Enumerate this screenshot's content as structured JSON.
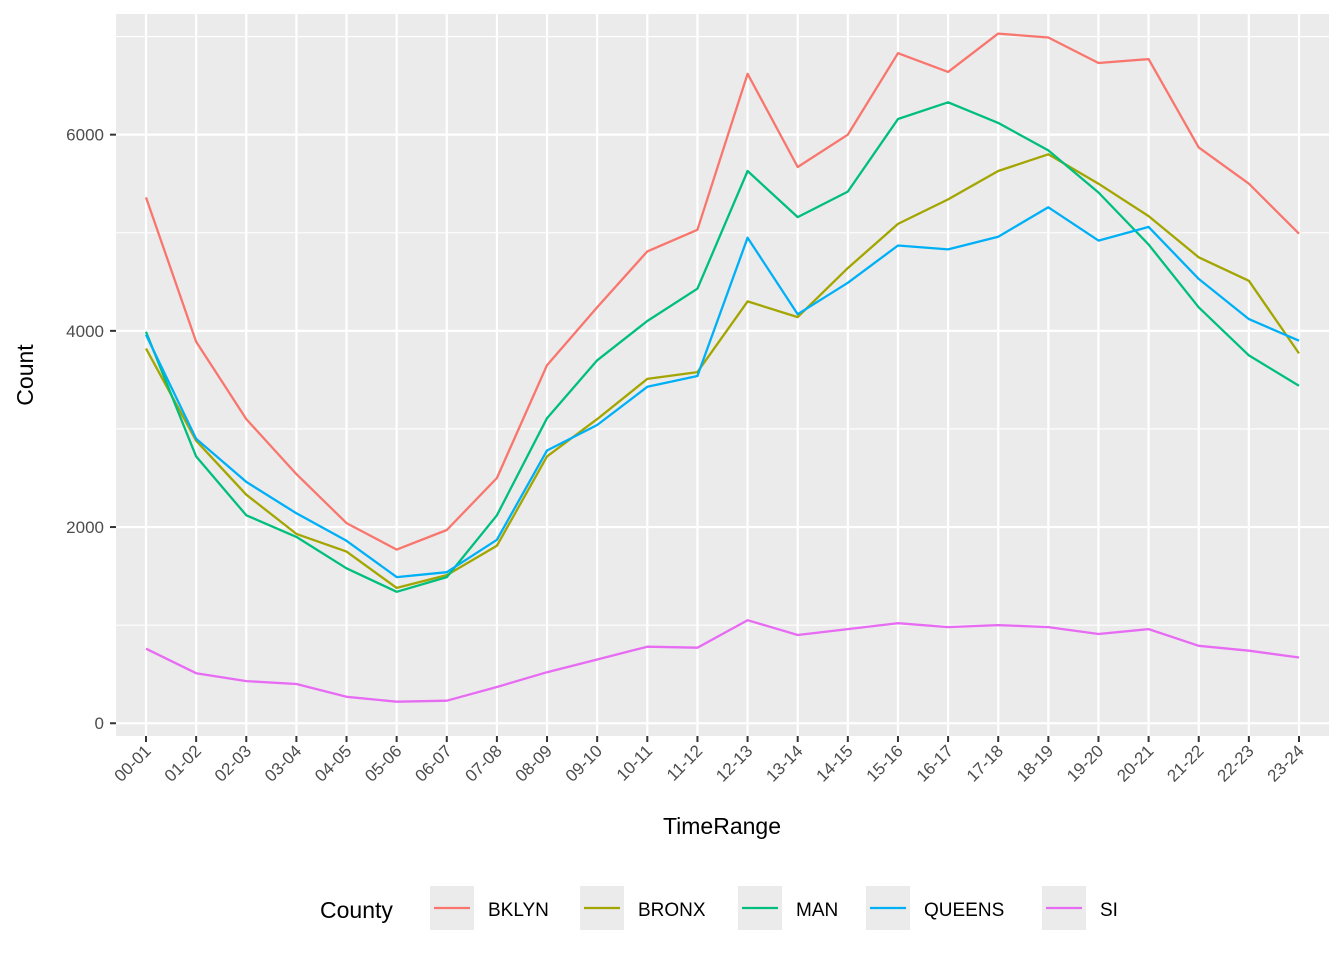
{
  "chart_data": {
    "type": "line",
    "title": "",
    "xlabel": "TimeRange",
    "ylabel": "Count",
    "categories": [
      "00-01",
      "01-02",
      "02-03",
      "03-04",
      "04-05",
      "05-06",
      "06-07",
      "07-08",
      "08-09",
      "09-10",
      "10-11",
      "11-12",
      "12-13",
      "13-14",
      "14-15",
      "15-16",
      "16-17",
      "17-18",
      "18-19",
      "19-20",
      "20-21",
      "21-22",
      "22-23",
      "23-24"
    ],
    "ylim": [
      -130,
      7230
    ],
    "yticks": [
      0,
      2000,
      4000,
      6000
    ],
    "grid": true,
    "legend": {
      "title": "County",
      "position": "bottom"
    },
    "series": [
      {
        "name": "BKLYN",
        "color": "#F8766D",
        "values": [
          5360,
          3890,
          3100,
          2540,
          2040,
          1770,
          1970,
          2500,
          3650,
          4240,
          4810,
          5030,
          6620,
          5670,
          6000,
          6830,
          6640,
          7030,
          6990,
          6730,
          6770,
          5870,
          5500,
          4990
        ]
      },
      {
        "name": "BRONX",
        "color": "#A3A500",
        "values": [
          3820,
          2880,
          2330,
          1930,
          1750,
          1380,
          1510,
          1810,
          2720,
          3100,
          3510,
          3580,
          4300,
          4140,
          4640,
          5090,
          5340,
          5630,
          5800,
          5500,
          5170,
          4750,
          4510,
          3770
        ]
      },
      {
        "name": "MAN",
        "color": "#00BF7D",
        "values": [
          3990,
          2720,
          2120,
          1900,
          1580,
          1340,
          1490,
          2120,
          3110,
          3700,
          4100,
          4430,
          5630,
          5160,
          5420,
          6160,
          6330,
          6120,
          5840,
          5410,
          4880,
          4240,
          3750,
          3440
        ]
      },
      {
        "name": "QUEENS",
        "color": "#00B0F6",
        "values": [
          3960,
          2900,
          2460,
          2140,
          1860,
          1490,
          1540,
          1870,
          2780,
          3040,
          3430,
          3540,
          4950,
          4170,
          4490,
          4870,
          4830,
          4960,
          5260,
          4920,
          5060,
          4530,
          4120,
          3900
        ]
      },
      {
        "name": "SI",
        "color": "#E76BF3",
        "values": [
          760,
          510,
          430,
          400,
          270,
          220,
          230,
          370,
          520,
          650,
          780,
          770,
          1050,
          900,
          960,
          1020,
          980,
          1000,
          980,
          910,
          960,
          790,
          740,
          670
        ]
      }
    ]
  }
}
